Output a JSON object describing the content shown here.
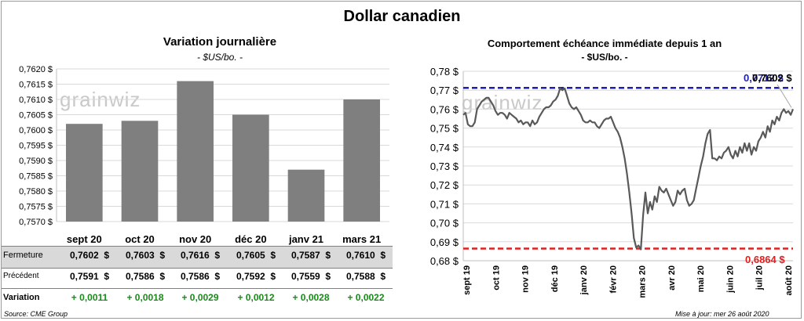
{
  "page": {
    "title": "Dollar canadien",
    "source": "Source: CME Group",
    "updated": "Mise à jour: mer 26 août 2020",
    "watermark": "grainwiz"
  },
  "left_panel": {
    "title": "Variation  journalière",
    "unit": "- $US/bo. -"
  },
  "right_panel": {
    "title": "Comportement échéance immédiate depuis 1 an",
    "unit": "- $US/bo. -",
    "max_label": "0,7712 $",
    "current_label": "0,7602 $",
    "min_label": "0,6864 $"
  },
  "table": {
    "rows": [
      {
        "label": "Fermeture",
        "values": [
          "0,7602  $",
          "0,7603  $",
          "0,7616  $",
          "0,7605  $",
          "0,7587  $",
          "0,7610  $"
        ]
      },
      {
        "label": "Précédent",
        "values": [
          "0,7591  $",
          "0,7586  $",
          "0,7586  $",
          "0,7592  $",
          "0,7559  $",
          "0,7588  $"
        ]
      },
      {
        "label": "Variation",
        "values": [
          "+ 0,0011",
          "+ 0,0018",
          "+ 0,0029",
          "+ 0,0012",
          "+ 0,0028",
          "+ 0,0022"
        ]
      }
    ],
    "positive_color": "#1a8a1a"
  },
  "chart_data": [
    {
      "type": "bar",
      "categories": [
        "sept 20",
        "oct 20",
        "nov 20",
        "déc 20",
        "janv 21",
        "mars 21"
      ],
      "values": [
        0.7602,
        0.7603,
        0.7616,
        0.7605,
        0.7587,
        0.761
      ],
      "ylim": [
        0.757,
        0.762
      ],
      "yticks": [
        "0,7570 $",
        "0,7575 $",
        "0,7580 $",
        "0,7585 $",
        "0,7590 $",
        "0,7595 $",
        "0,7600 $",
        "0,7605 $",
        "0,7610 $",
        "0,7615 $",
        "0,7620 $"
      ],
      "grid": true,
      "bar_color": "#7f7f7f"
    },
    {
      "type": "line",
      "ylim": [
        0.68,
        0.78
      ],
      "yticks": [
        "0,68 $",
        "0,69 $",
        "0,70 $",
        "0,71 $",
        "0,72 $",
        "0,73 $",
        "0,74 $",
        "0,75 $",
        "0,76 $",
        "0,77 $",
        "0,78 $"
      ],
      "xticks": [
        "sept 19",
        "oct 19",
        "nov 19",
        "déc 19",
        "janv 20",
        "févr 20",
        "mars 20",
        "avr 20",
        "mai 20",
        "juin 20",
        "juil 20",
        "août 20"
      ],
      "line_color": "#595959",
      "max_line": {
        "value": 0.7712,
        "color": "#1f1fa8"
      },
      "min_line": {
        "value": 0.6864,
        "color": "#e02020"
      },
      "series": [
        {
          "values": [
            0.757,
            0.758,
            0.752,
            0.751,
            0.751,
            0.753,
            0.76,
            0.762,
            0.764,
            0.765,
            0.766,
            0.766,
            0.764,
            0.762,
            0.759,
            0.757,
            0.758,
            0.758,
            0.757,
            0.755,
            0.758,
            0.757,
            0.756,
            0.755,
            0.753,
            0.754,
            0.752,
            0.753,
            0.753,
            0.751,
            0.754,
            0.752,
            0.753,
            0.756,
            0.758,
            0.76,
            0.761,
            0.761,
            0.762,
            0.764,
            0.765,
            0.767,
            0.771,
            0.77,
            0.771,
            0.767,
            0.763,
            0.761,
            0.76,
            0.761,
            0.759,
            0.757,
            0.754,
            0.753,
            0.753,
            0.754,
            0.753,
            0.753,
            0.751,
            0.75,
            0.752,
            0.754,
            0.755,
            0.755,
            0.756,
            0.753,
            0.75,
            0.748,
            0.745,
            0.74,
            0.734,
            0.726,
            0.716,
            0.705,
            0.692,
            0.687,
            0.688,
            0.686,
            0.704,
            0.716,
            0.705,
            0.711,
            0.707,
            0.714,
            0.711,
            0.719,
            0.717,
            0.716,
            0.718,
            0.715,
            0.712,
            0.709,
            0.711,
            0.717,
            0.715,
            0.717,
            0.718,
            0.712,
            0.709,
            0.71,
            0.712,
            0.718,
            0.724,
            0.73,
            0.735,
            0.742,
            0.747,
            0.749,
            0.734,
            0.734,
            0.733,
            0.735,
            0.734,
            0.737,
            0.738,
            0.74,
            0.736,
            0.734,
            0.738,
            0.735,
            0.74,
            0.737,
            0.742,
            0.738,
            0.742,
            0.736,
            0.74,
            0.738,
            0.743,
            0.745,
            0.748,
            0.745,
            0.751,
            0.748,
            0.754,
            0.752,
            0.756,
            0.754,
            0.758,
            0.76,
            0.758,
            0.759,
            0.757,
            0.76
          ]
        }
      ]
    }
  ]
}
